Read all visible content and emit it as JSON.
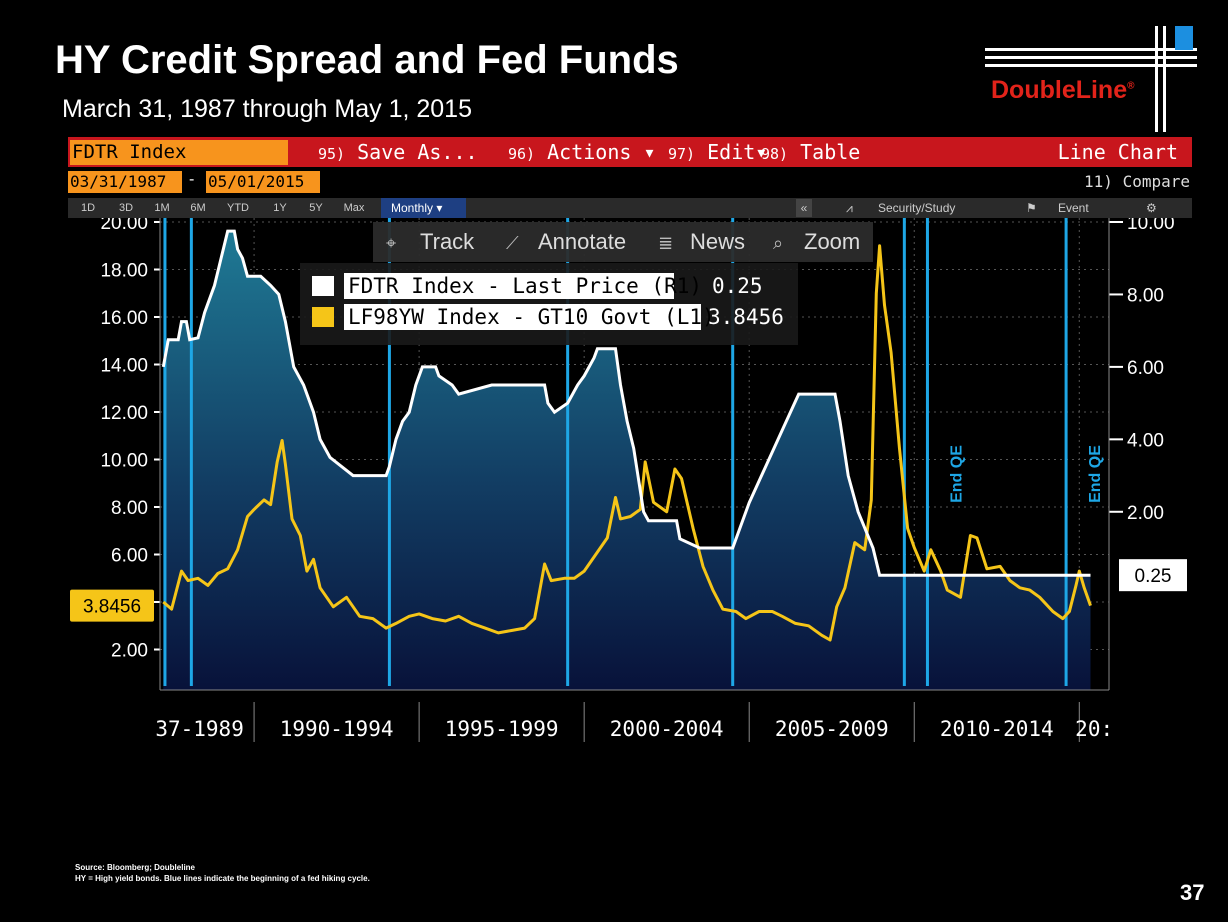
{
  "title": "HY Credit Spread and Fed Funds",
  "subtitle": "March 31, 1987 through May 1, 2015",
  "logo": {
    "name": "DoubleLine",
    "mark": "®"
  },
  "terminal": {
    "ticker": "FDTR Index",
    "menu": [
      {
        "key": "95)",
        "label": "Save As..."
      },
      {
        "key": "96)",
        "label": "Actions ▾"
      },
      {
        "key": "97)",
        "label": "Edit▾"
      },
      {
        "key": "98)",
        "label": "Table"
      }
    ],
    "chart_type_label": "Line Chart",
    "start_date": "03/31/1987",
    "end_date": "05/01/2015",
    "compare_label": "11) Compare",
    "periods": [
      "1D",
      "3D",
      "1M",
      "6M",
      "YTD",
      "1Y",
      "5Y",
      "Max"
    ],
    "frequency": "Monthly ▾",
    "collapse_icon": "«",
    "study_label": "Security/Study",
    "event_label": "Event",
    "gear_icon": "⚙",
    "toolbar": [
      {
        "icon": "⌖",
        "label": "Track"
      },
      {
        "icon": "⟋",
        "label": "Annotate"
      },
      {
        "icon": "≣",
        "label": "News"
      },
      {
        "icon": "⌕",
        "label": "Zoom"
      }
    ]
  },
  "chart_data": {
    "type": "line",
    "title": "HY Credit Spread and Fed Funds",
    "x_tick_labels": [
      "37-1989",
      "1990-1994",
      "1995-1999",
      "2000-2004",
      "2005-2009",
      "2010-2014",
      "20:"
    ],
    "left_axis": {
      "ticks": [
        "20.00",
        "18.00",
        "16.00",
        "14.00",
        "12.00",
        "10.00",
        "8.00",
        "6.00",
        "4.00",
        "2.00"
      ],
      "range": [
        0.8,
        20
      ]
    },
    "right_axis": {
      "ticks": [
        "10.00",
        "8.00",
        "6.00",
        "4.00",
        "2.00"
      ],
      "range": [
        -2.4,
        10
      ]
    },
    "left_last_value": "3.8456",
    "right_last_value": "0.25",
    "legend": [
      {
        "name": "FDTR Index - Last Price (R1)",
        "value": "0.25",
        "color": "#ffffff"
      },
      {
        "name": "LF98YW Index - GT10 Govt (L1)",
        "value": "3.8456",
        "color": "#f5c518"
      }
    ],
    "series": [
      {
        "name": "FDTR Index - Last Price (R1)",
        "axis": "right",
        "color": "#ffffff",
        "points": [
          [
            1987.25,
            6.0
          ],
          [
            1987.4,
            6.75
          ],
          [
            1987.7,
            6.75
          ],
          [
            1987.8,
            7.25
          ],
          [
            1987.95,
            7.25
          ],
          [
            1988.05,
            6.75
          ],
          [
            1988.3,
            6.8
          ],
          [
            1988.5,
            7.5
          ],
          [
            1988.8,
            8.25
          ],
          [
            1989.0,
            9.0
          ],
          [
            1989.2,
            9.75
          ],
          [
            1989.4,
            9.75
          ],
          [
            1989.5,
            9.25
          ],
          [
            1989.65,
            9.0
          ],
          [
            1989.8,
            8.5
          ],
          [
            1990.2,
            8.5
          ],
          [
            1990.5,
            8.25
          ],
          [
            1990.75,
            8.0
          ],
          [
            1990.95,
            7.25
          ],
          [
            1991.2,
            6.0
          ],
          [
            1991.5,
            5.5
          ],
          [
            1991.8,
            4.75
          ],
          [
            1992.0,
            4.0
          ],
          [
            1992.3,
            3.5
          ],
          [
            1993.0,
            3.0
          ],
          [
            1994.0,
            3.0
          ],
          [
            1994.1,
            3.25
          ],
          [
            1994.3,
            4.0
          ],
          [
            1994.5,
            4.5
          ],
          [
            1994.7,
            4.75
          ],
          [
            1994.9,
            5.5
          ],
          [
            1995.1,
            6.0
          ],
          [
            1995.5,
            6.0
          ],
          [
            1995.6,
            5.75
          ],
          [
            1996.0,
            5.5
          ],
          [
            1996.2,
            5.25
          ],
          [
            1997.2,
            5.5
          ],
          [
            1998.8,
            5.5
          ],
          [
            1998.9,
            5.0
          ],
          [
            1999.1,
            4.75
          ],
          [
            1999.5,
            5.0
          ],
          [
            1999.8,
            5.5
          ],
          [
            2000.0,
            5.75
          ],
          [
            2000.3,
            6.25
          ],
          [
            2000.4,
            6.5
          ],
          [
            2000.95,
            6.5
          ],
          [
            2001.1,
            5.5
          ],
          [
            2001.3,
            4.5
          ],
          [
            2001.5,
            3.75
          ],
          [
            2001.8,
            2.0
          ],
          [
            2001.95,
            1.75
          ],
          [
            2002.8,
            1.75
          ],
          [
            2002.9,
            1.25
          ],
          [
            2003.5,
            1.0
          ],
          [
            2004.5,
            1.0
          ],
          [
            2004.7,
            1.5
          ],
          [
            2005.0,
            2.25
          ],
          [
            2005.5,
            3.25
          ],
          [
            2006.0,
            4.25
          ],
          [
            2006.5,
            5.25
          ],
          [
            2007.6,
            5.25
          ],
          [
            2007.75,
            4.5
          ],
          [
            2008.0,
            3.0
          ],
          [
            2008.3,
            2.0
          ],
          [
            2008.75,
            1.0
          ],
          [
            2008.95,
            0.25
          ],
          [
            2015.34,
            0.25
          ]
        ]
      },
      {
        "name": "LF98YW Index - GT10 Govt (L1)",
        "axis": "left",
        "color": "#f5c518",
        "points": [
          [
            1987.25,
            4.0
          ],
          [
            1987.5,
            3.7
          ],
          [
            1987.8,
            5.3
          ],
          [
            1988.0,
            4.9
          ],
          [
            1988.3,
            5.0
          ],
          [
            1988.6,
            4.7
          ],
          [
            1988.9,
            5.2
          ],
          [
            1989.2,
            5.4
          ],
          [
            1989.5,
            6.2
          ],
          [
            1989.8,
            7.6
          ],
          [
            1990.0,
            7.9
          ],
          [
            1990.3,
            8.3
          ],
          [
            1990.5,
            8.1
          ],
          [
            1990.7,
            9.9
          ],
          [
            1990.85,
            10.8
          ],
          [
            1990.95,
            9.8
          ],
          [
            1991.15,
            7.5
          ],
          [
            1991.4,
            6.8
          ],
          [
            1991.6,
            5.3
          ],
          [
            1991.8,
            5.8
          ],
          [
            1992.0,
            4.6
          ],
          [
            1992.4,
            3.8
          ],
          [
            1992.8,
            4.2
          ],
          [
            1993.2,
            3.4
          ],
          [
            1993.6,
            3.3
          ],
          [
            1994.0,
            2.9
          ],
          [
            1994.3,
            3.1
          ],
          [
            1994.7,
            3.4
          ],
          [
            1995.0,
            3.5
          ],
          [
            1995.4,
            3.3
          ],
          [
            1995.8,
            3.2
          ],
          [
            1996.2,
            3.4
          ],
          [
            1996.6,
            3.1
          ],
          [
            1997.0,
            2.9
          ],
          [
            1997.4,
            2.7
          ],
          [
            1997.8,
            2.8
          ],
          [
            1998.2,
            2.9
          ],
          [
            1998.5,
            3.3
          ],
          [
            1998.8,
            5.6
          ],
          [
            1999.0,
            4.9
          ],
          [
            1999.4,
            5.0
          ],
          [
            1999.7,
            5.0
          ],
          [
            2000.0,
            5.3
          ],
          [
            2000.4,
            6.1
          ],
          [
            2000.7,
            6.7
          ],
          [
            2000.95,
            8.4
          ],
          [
            2001.1,
            7.5
          ],
          [
            2001.4,
            7.6
          ],
          [
            2001.7,
            7.9
          ],
          [
            2001.85,
            9.9
          ],
          [
            2002.1,
            8.2
          ],
          [
            2002.5,
            7.8
          ],
          [
            2002.75,
            9.6
          ],
          [
            2002.95,
            9.2
          ],
          [
            2003.3,
            7.1
          ],
          [
            2003.6,
            5.5
          ],
          [
            2003.9,
            4.5
          ],
          [
            2004.2,
            3.7
          ],
          [
            2004.6,
            3.6
          ],
          [
            2004.9,
            3.3
          ],
          [
            2005.3,
            3.6
          ],
          [
            2005.7,
            3.6
          ],
          [
            2006.0,
            3.4
          ],
          [
            2006.4,
            3.1
          ],
          [
            2006.8,
            3.0
          ],
          [
            2007.2,
            2.6
          ],
          [
            2007.45,
            2.4
          ],
          [
            2007.65,
            3.8
          ],
          [
            2007.9,
            4.6
          ],
          [
            2008.2,
            6.5
          ],
          [
            2008.5,
            6.2
          ],
          [
            2008.7,
            8.3
          ],
          [
            2008.85,
            17.0
          ],
          [
            2008.95,
            19.0
          ],
          [
            2009.1,
            16.5
          ],
          [
            2009.3,
            14.5
          ],
          [
            2009.55,
            10.5
          ],
          [
            2009.8,
            7.1
          ],
          [
            2010.0,
            6.3
          ],
          [
            2010.3,
            5.3
          ],
          [
            2010.5,
            6.2
          ],
          [
            2010.8,
            5.3
          ],
          [
            2011.0,
            4.5
          ],
          [
            2011.4,
            4.2
          ],
          [
            2011.7,
            6.8
          ],
          [
            2011.9,
            6.7
          ],
          [
            2012.2,
            5.4
          ],
          [
            2012.6,
            5.5
          ],
          [
            2012.9,
            4.9
          ],
          [
            2013.2,
            4.6
          ],
          [
            2013.5,
            4.5
          ],
          [
            2013.8,
            4.2
          ],
          [
            2014.2,
            3.6
          ],
          [
            2014.5,
            3.3
          ],
          [
            2014.7,
            3.6
          ],
          [
            2014.9,
            4.7
          ],
          [
            2015.0,
            5.3
          ],
          [
            2015.15,
            4.6
          ],
          [
            2015.34,
            3.85
          ]
        ]
      }
    ],
    "annotations": [
      {
        "text": "End QE",
        "x": 2010.4
      },
      {
        "text": "End QE",
        "x": 2014.6
      }
    ],
    "hike_cycle_lines": [
      1987.3,
      1988.1,
      1994.1,
      1999.5,
      2004.5,
      2009.7,
      2010.4,
      2014.6
    ]
  },
  "footnote": {
    "line1": "Source: Bloomberg; Doubleline",
    "line2": "HY = High yield bonds. Blue lines indicate the beginning of a fed hiking cycle."
  },
  "page_number": "37"
}
